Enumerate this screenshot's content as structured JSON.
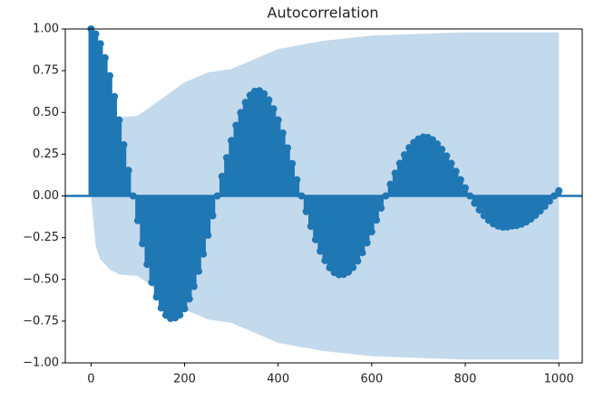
{
  "chart_data": {
    "type": "stem",
    "title": "Autocorrelation",
    "xlim": [
      -55,
      1050
    ],
    "ylim": [
      -1,
      1
    ],
    "xticks": [
      0,
      200,
      400,
      600,
      800,
      1000
    ],
    "yticks": [
      {
        "value": 1,
        "label": "1.00"
      },
      {
        "value": 0.75,
        "label": "0.75"
      },
      {
        "value": 0.5,
        "label": "0.50"
      },
      {
        "value": 0.25,
        "label": "0.25"
      },
      {
        "value": 0,
        "label": "0.00"
      },
      {
        "value": -0.25,
        "label": "−0.25"
      },
      {
        "value": -0.5,
        "label": "−0.50"
      },
      {
        "value": -0.75,
        "label": "−0.75"
      },
      {
        "value": -1,
        "label": "−1.00"
      }
    ],
    "series": [
      {
        "color": "#1f77b4",
        "x": [
          0,
          10,
          20,
          30,
          40,
          50,
          60,
          70,
          80,
          90,
          100,
          110,
          120,
          130,
          140,
          150,
          160,
          170,
          180,
          190,
          200,
          210,
          220,
          230,
          240,
          250,
          260,
          270,
          280,
          290,
          300,
          310,
          320,
          330,
          340,
          350,
          360,
          370,
          380,
          390,
          400,
          410,
          420,
          430,
          440,
          450,
          460,
          470,
          480,
          490,
          500,
          510,
          520,
          530,
          540,
          550,
          560,
          570,
          580,
          590,
          600,
          610,
          620,
          630,
          640,
          650,
          660,
          670,
          680,
          690,
          700,
          710,
          720,
          730,
          740,
          750,
          760,
          770,
          780,
          790,
          800,
          810,
          820,
          830,
          840,
          850,
          860,
          870,
          880,
          890,
          900,
          910,
          920,
          930,
          940,
          950,
          960,
          970,
          980,
          990,
          1000
        ],
        "values": [
          1.0,
          0.97,
          0.911,
          0.827,
          0.72,
          0.595,
          0.455,
          0.306,
          0.153,
          0,
          -0.148,
          -0.286,
          -0.41,
          -0.518,
          -0.605,
          -0.671,
          -0.714,
          -0.734,
          -0.73,
          -0.713,
          -0.676,
          -0.617,
          -0.542,
          -0.451,
          -0.348,
          -0.236,
          -0.119,
          0,
          0.117,
          0.229,
          0.332,
          0.423,
          0.499,
          0.56,
          0.603,
          0.626,
          0.63,
          0.612,
          0.575,
          0.522,
          0.455,
          0.377,
          0.288,
          0.194,
          0.097,
          0,
          -0.094,
          -0.182,
          -0.262,
          -0.331,
          -0.387,
          -0.43,
          -0.459,
          -0.472,
          -0.47,
          -0.456,
          -0.429,
          -0.39,
          -0.34,
          -0.281,
          -0.215,
          -0.145,
          -0.073,
          0,
          0.07,
          0.136,
          0.195,
          0.246,
          0.289,
          0.32,
          0.341,
          0.352,
          0.35,
          0.336,
          0.311,
          0.279,
          0.239,
          0.195,
          0.147,
          0.097,
          0.048,
          0,
          -0.044,
          -0.084,
          -0.118,
          -0.146,
          -0.167,
          -0.18,
          -0.187,
          -0.186,
          -0.18,
          -0.177,
          -0.169,
          -0.156,
          -0.138,
          -0.116,
          -0.09,
          -0.062,
          -0.031,
          0,
          0.031
        ]
      }
    ],
    "confidence_band": {
      "color": "#c3d9ec",
      "x": [
        0,
        10,
        20,
        40,
        60,
        100,
        150,
        200,
        250,
        300,
        350,
        400,
        500,
        600,
        700,
        800,
        900,
        1000
      ],
      "upper": [
        0,
        0.3,
        0.38,
        0.44,
        0.47,
        0.48,
        0.58,
        0.68,
        0.74,
        0.76,
        0.82,
        0.88,
        0.93,
        0.96,
        0.97,
        0.98,
        0.98,
        0.98
      ],
      "lower": [
        0,
        -0.3,
        -0.38,
        -0.44,
        -0.47,
        -0.48,
        -0.58,
        -0.68,
        -0.74,
        -0.76,
        -0.82,
        -0.88,
        -0.93,
        -0.96,
        -0.97,
        -0.98,
        -0.98,
        -0.98
      ]
    }
  }
}
